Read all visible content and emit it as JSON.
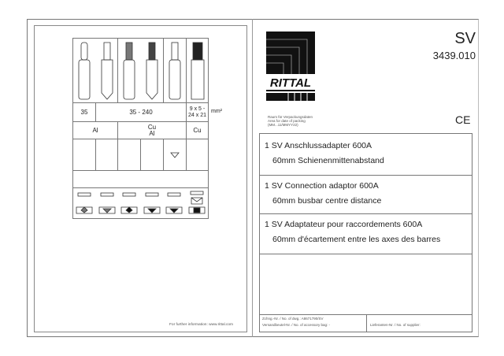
{
  "left": {
    "size_row": {
      "c1": "35",
      "c2": "35 - 240",
      "c3": "9 x 5 -\n24 x 21",
      "unit": "mm²"
    },
    "material_row": {
      "c1": "Al",
      "c2": "Cu\nAl",
      "c3": "Cu"
    },
    "footer": "For further information: www.rittal.com"
  },
  "right": {
    "logo_text": "RITTAL",
    "title": "SV",
    "part_number": "3439.010",
    "packing_note": "Raum für Verpackungsdaten\nArea for date of packing\n(MM...11/MMYY22)",
    "ce_mark": "CE",
    "entries": [
      {
        "line1": "1  SV Anschlussadapter 600A",
        "line2": "60mm Schienenmittenabstand"
      },
      {
        "line1": "1  SV Connection adaptor 600A",
        "line2": "60mm busbar centre distance"
      },
      {
        "line1": "1  SV Adaptateur pour raccordements 600A",
        "line2": "60mm d'écartement entre les axes des barres"
      }
    ],
    "drawing_no": "Zchng.-Nr. / No. of dwg.: A8671790/SV",
    "bag_no": "Versandbeutel-Nr. / No. of accessory bag: -",
    "supplier_no": "Lieferanten-Nr. / No. of supplier:"
  }
}
